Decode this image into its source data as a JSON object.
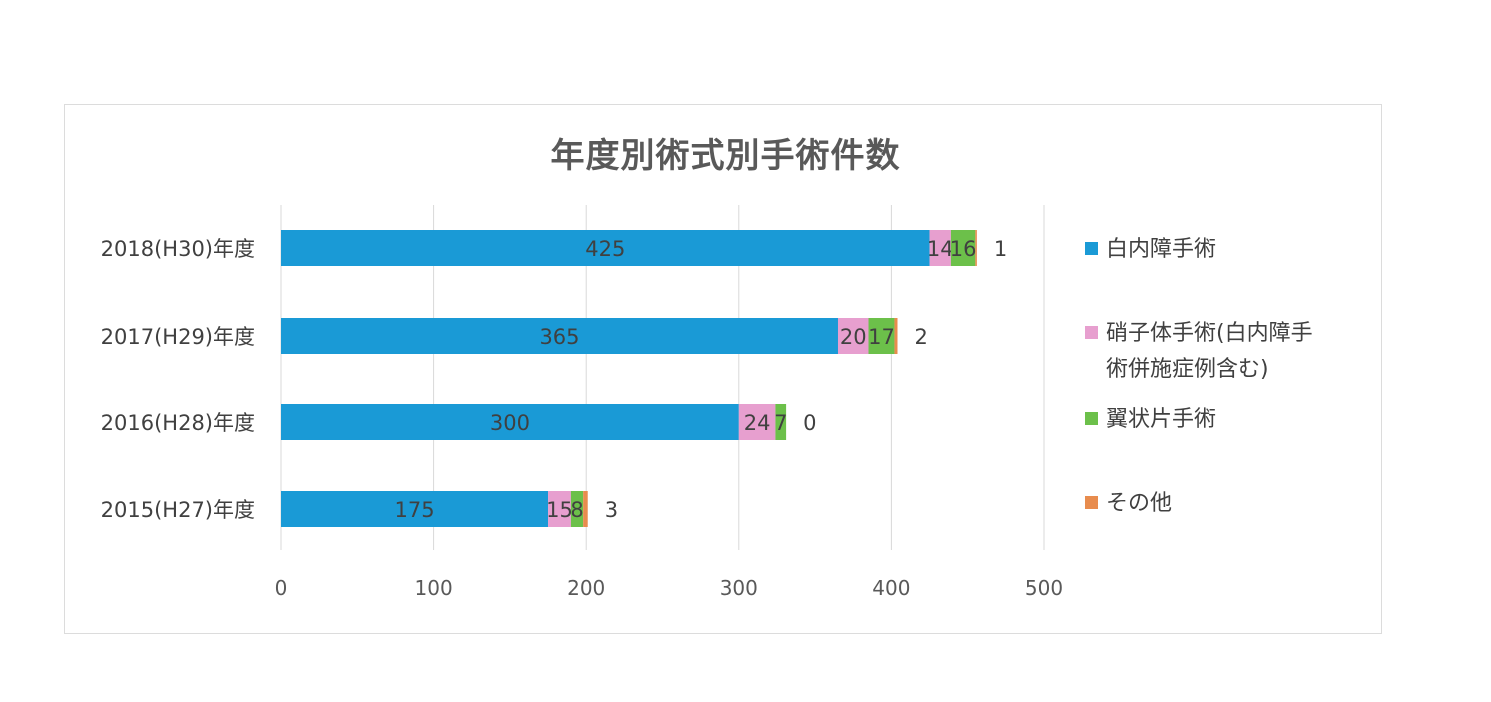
{
  "chart_data": {
    "type": "bar",
    "orientation": "horizontal",
    "stacked": true,
    "title": "年度別術式別手術件数",
    "categories": [
      "2018(H30)年度",
      "2017(H29)年度",
      "2016(H28)年度",
      "2015(H27)年度"
    ],
    "series": [
      {
        "name": "白内障手術",
        "color": "#1a9ad6",
        "values": [
          425,
          365,
          300,
          175
        ]
      },
      {
        "name": "硝子体手術(白内障手術併施症例含む)",
        "color": "#e79fcf",
        "values": [
          14,
          20,
          24,
          15
        ]
      },
      {
        "name": "翼状片手術",
        "color": "#6cc04a",
        "values": [
          16,
          17,
          7,
          8
        ]
      },
      {
        "name": "その他",
        "color": "#e88c4e",
        "values": [
          1,
          2,
          0,
          3
        ]
      }
    ],
    "legend_lines": [
      [
        "白内障手術"
      ],
      [
        "硝子体手術(白内障手",
        "術併施症例含む)"
      ],
      [
        "翼状片手術"
      ],
      [
        "その他"
      ]
    ],
    "xlim": [
      0,
      500
    ],
    "xticks": [
      0,
      100,
      200,
      300,
      400,
      500
    ],
    "xlabel": "",
    "ylabel": "",
    "grid": true,
    "legend_position": "right"
  }
}
